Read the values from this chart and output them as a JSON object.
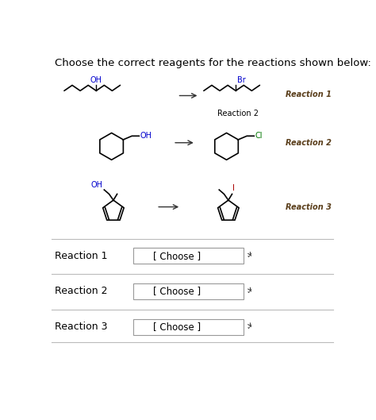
{
  "title": "Choose the correct reagents for the reactions shown below:",
  "title_fontsize": 9.5,
  "background_color": "#ffffff",
  "reaction_labels": [
    "Reaction 1",
    "Reaction 2",
    "Reaction 3"
  ],
  "reaction_label_color": "#5a3e1b",
  "reaction2_below_label": "Reaction 2",
  "dropdown_label": "[ Choose ]",
  "oh_color": "#0000cc",
  "br_color": "#0000cc",
  "cl_color": "#007700",
  "i_color": "#aa0000",
  "separator_color": "#bbbbbb",
  "arrow_color": "#333333"
}
